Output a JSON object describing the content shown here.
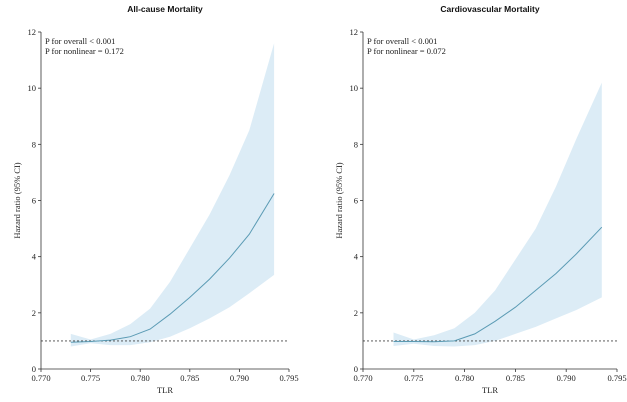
{
  "chart_data": [
    {
      "type": "line",
      "title": "All-cause Mortality",
      "xlabel": "TLR",
      "ylabel": "Hazard ratio (95% CI)",
      "xlim": [
        0.77,
        0.795
      ],
      "ylim": [
        0,
        12
      ],
      "xticks": [
        "0.770",
        "0.775",
        "0.780",
        "0.785",
        "0.790",
        "0.795"
      ],
      "yticks": [
        "0",
        "2",
        "4",
        "6",
        "8",
        "10",
        "12"
      ],
      "annotations": [
        "P for overall < 0.001",
        "P for nonlinear = 0.172"
      ],
      "reference_line": 1,
      "grid": false,
      "colors": {
        "line": "#5b9bb4",
        "band": "#dcecf6",
        "reference": "#444444"
      },
      "x": [
        0.773,
        0.775,
        0.777,
        0.779,
        0.781,
        0.783,
        0.785,
        0.787,
        0.789,
        0.791,
        0.7935
      ],
      "series": [
        {
          "values": [
            0.95,
            0.98,
            1.03,
            1.15,
            1.42,
            1.95,
            2.55,
            3.2,
            3.95,
            4.8,
            6.25
          ]
        }
      ],
      "ci_lower": [
        0.8,
        0.92,
        0.85,
        0.85,
        0.95,
        1.15,
        1.45,
        1.8,
        2.2,
        2.7,
        3.35
      ],
      "ci_upper": [
        1.25,
        1.05,
        1.25,
        1.6,
        2.15,
        3.1,
        4.3,
        5.5,
        6.9,
        8.5,
        11.6
      ]
    },
    {
      "type": "line",
      "title": "Cardiovascular Mortality",
      "xlabel": "TLR",
      "ylabel": "Hazard ratio (95% CI)",
      "xlim": [
        0.77,
        0.795
      ],
      "ylim": [
        0,
        12
      ],
      "xticks": [
        "0.770",
        "0.775",
        "0.780",
        "0.785",
        "0.790",
        "0.795"
      ],
      "yticks": [
        "0",
        "2",
        "4",
        "6",
        "8",
        "10",
        "12"
      ],
      "annotations": [
        "P for overall < 0.001",
        "P for nonlinear = 0.072"
      ],
      "reference_line": 1,
      "grid": false,
      "colors": {
        "line": "#5b9bb4",
        "band": "#dcecf6",
        "reference": "#444444"
      },
      "x": [
        0.773,
        0.775,
        0.777,
        0.779,
        0.781,
        0.783,
        0.785,
        0.787,
        0.789,
        0.791,
        0.7935
      ],
      "series": [
        {
          "values": [
            0.98,
            0.98,
            0.97,
            1.0,
            1.25,
            1.7,
            2.2,
            2.8,
            3.4,
            4.1,
            5.05
          ]
        }
      ],
      "ci_lower": [
        0.82,
        0.9,
        0.82,
        0.8,
        0.85,
        1.0,
        1.25,
        1.5,
        1.8,
        2.1,
        2.55
      ],
      "ci_upper": [
        1.3,
        1.05,
        1.2,
        1.45,
        2.0,
        2.8,
        3.9,
        5.0,
        6.5,
        8.2,
        10.2
      ]
    }
  ]
}
